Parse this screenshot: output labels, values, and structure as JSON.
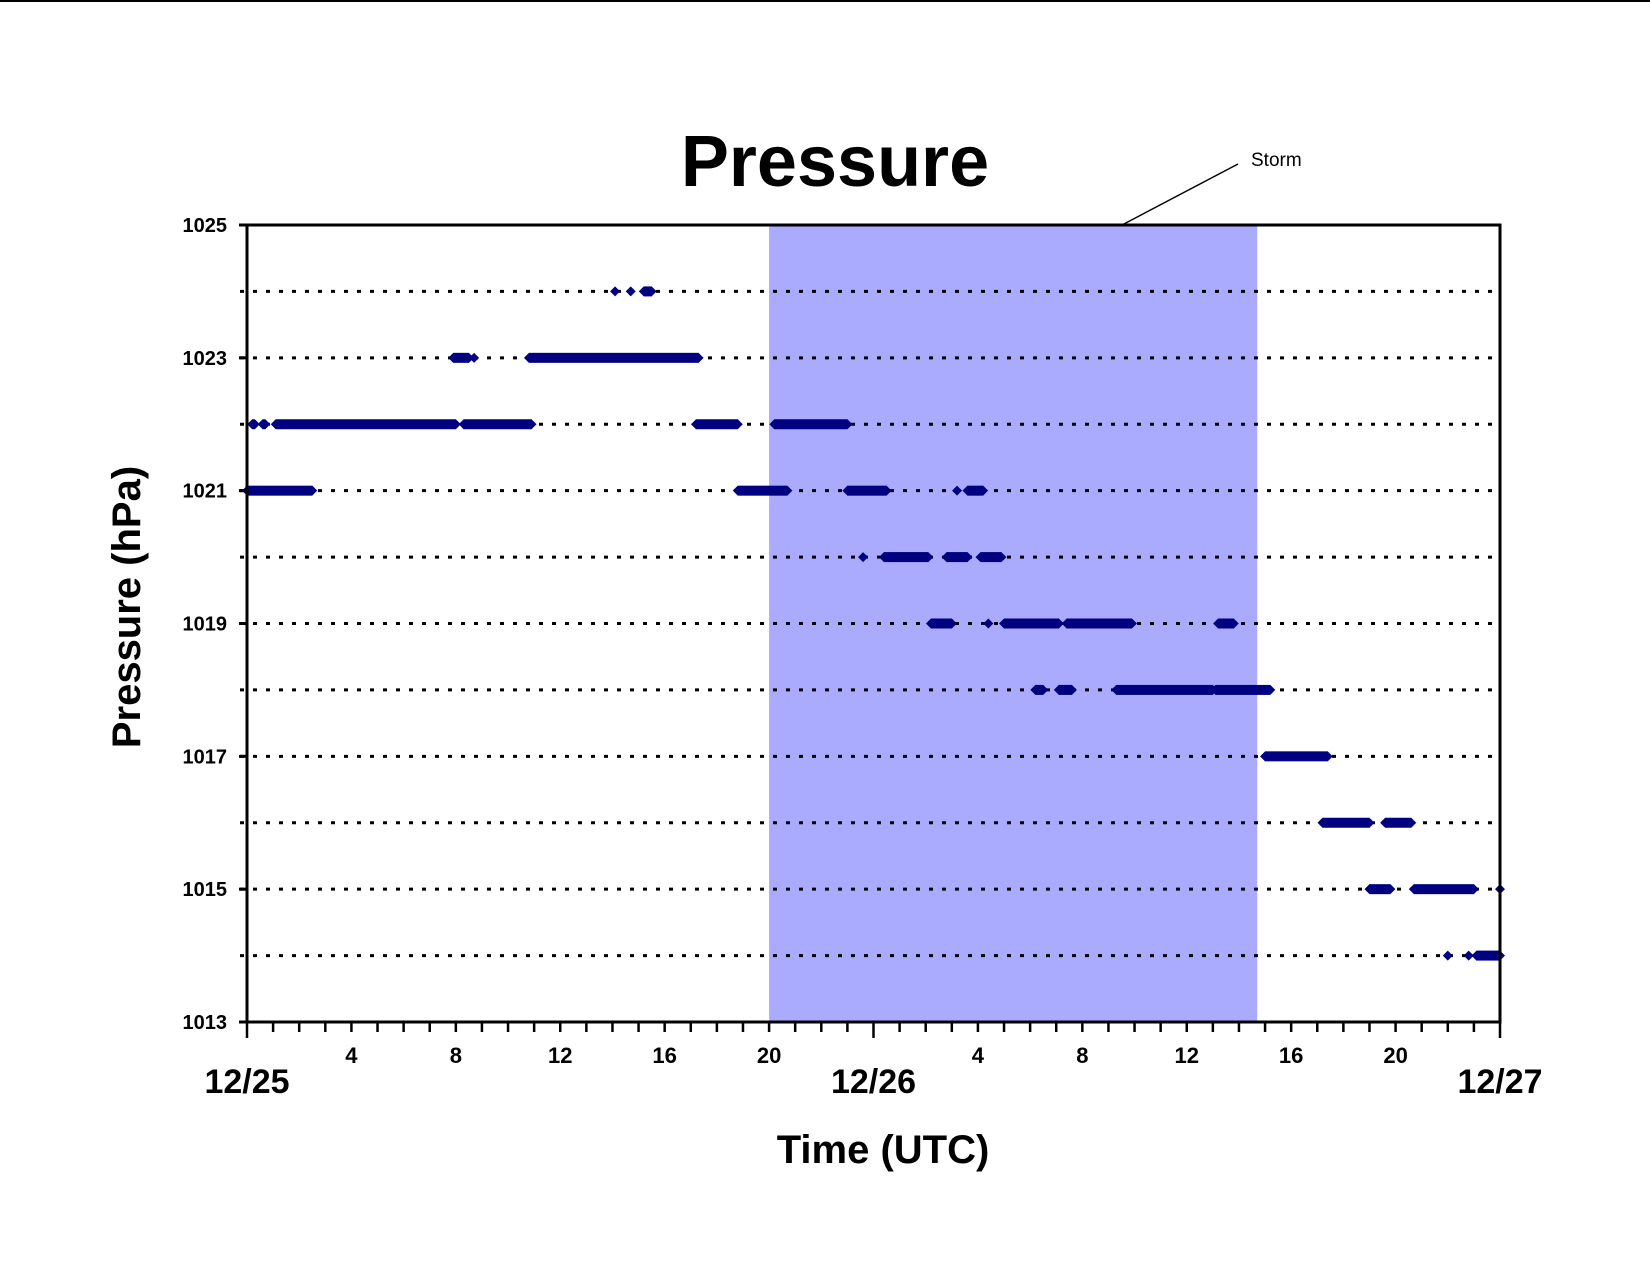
{
  "chart_data": {
    "type": "scatter",
    "title": "Pressure",
    "xlabel": "Time (UTC)",
    "ylabel": "Pressure (hPa)",
    "xlim": [
      0,
      48
    ],
    "ylim": [
      1013,
      1025
    ],
    "yticks_labeled": [
      1013,
      1015,
      1017,
      1019,
      1021,
      1023,
      1025
    ],
    "y_gridlines": [
      1014,
      1015,
      1016,
      1017,
      1018,
      1019,
      1020,
      1021,
      1022,
      1023,
      1024
    ],
    "grid": "horizontal dotted",
    "x_hour_ticks": [
      {
        "hour": 4,
        "label": "4"
      },
      {
        "hour": 8,
        "label": "8"
      },
      {
        "hour": 12,
        "label": "12"
      },
      {
        "hour": 16,
        "label": "16"
      },
      {
        "hour": 20,
        "label": "20"
      },
      {
        "hour": 28,
        "label": "4"
      },
      {
        "hour": 32,
        "label": "8"
      },
      {
        "hour": 36,
        "label": "12"
      },
      {
        "hour": 40,
        "label": "16"
      },
      {
        "hour": 44,
        "label": "20"
      }
    ],
    "x_date_labels": [
      {
        "hour": 0,
        "label": "12/25"
      },
      {
        "hour": 24,
        "label": "12/26"
      },
      {
        "hour": 48,
        "label": "12/27"
      }
    ],
    "storm": {
      "label": "Storm",
      "start": 20,
      "end": 38.7,
      "color": "#aaaaff"
    },
    "marker_color": "#000080",
    "series": [
      {
        "segments": [
          {
            "y": 1024,
            "x0": 14.1,
            "x1": 14.1
          },
          {
            "y": 1024,
            "x0": 14.7,
            "x1": 14.7
          },
          {
            "y": 1024,
            "x0": 15.2,
            "x1": 15.5
          },
          {
            "y": 1023,
            "x0": 7.9,
            "x1": 8.5
          },
          {
            "y": 1023,
            "x0": 8.7,
            "x1": 8.7
          },
          {
            "y": 1023,
            "x0": 10.8,
            "x1": 17.3
          },
          {
            "y": 1022,
            "x0": 0.2,
            "x1": 0.3
          },
          {
            "y": 1022,
            "x0": 0.6,
            "x1": 0.7
          },
          {
            "y": 1022,
            "x0": 1.1,
            "x1": 8.0
          },
          {
            "y": 1022,
            "x0": 8.3,
            "x1": 10.9
          },
          {
            "y": 1022,
            "x0": 17.2,
            "x1": 18.8
          },
          {
            "y": 1022,
            "x0": 20.2,
            "x1": 23.0
          },
          {
            "y": 1021,
            "x0": 0.0,
            "x1": 2.5
          },
          {
            "y": 1021,
            "x0": 18.8,
            "x1": 20.7
          },
          {
            "y": 1021,
            "x0": 23.0,
            "x1": 24.5
          },
          {
            "y": 1021,
            "x0": 27.2,
            "x1": 27.2
          },
          {
            "y": 1021,
            "x0": 27.6,
            "x1": 28.2
          },
          {
            "y": 1020,
            "x0": 23.6,
            "x1": 23.6
          },
          {
            "y": 1020,
            "x0": 24.4,
            "x1": 26.1
          },
          {
            "y": 1020,
            "x0": 26.8,
            "x1": 27.6
          },
          {
            "y": 1020,
            "x0": 28.1,
            "x1": 28.9
          },
          {
            "y": 1019,
            "x0": 26.2,
            "x1": 27.0
          },
          {
            "y": 1019,
            "x0": 28.4,
            "x1": 28.4
          },
          {
            "y": 1019,
            "x0": 29.0,
            "x1": 31.1
          },
          {
            "y": 1019,
            "x0": 31.4,
            "x1": 33.9
          },
          {
            "y": 1019,
            "x0": 37.2,
            "x1": 37.8
          },
          {
            "y": 1018,
            "x0": 30.2,
            "x1": 30.5
          },
          {
            "y": 1018,
            "x0": 31.1,
            "x1": 31.6
          },
          {
            "y": 1018,
            "x0": 33.3,
            "x1": 37.0
          },
          {
            "y": 1018,
            "x0": 37.1,
            "x1": 39.2
          },
          {
            "y": 1017,
            "x0": 39.0,
            "x1": 41.4
          },
          {
            "y": 1016,
            "x0": 41.2,
            "x1": 43.0
          },
          {
            "y": 1016,
            "x0": 43.6,
            "x1": 44.6
          },
          {
            "y": 1015,
            "x0": 43.0,
            "x1": 43.8
          },
          {
            "y": 1015,
            "x0": 44.7,
            "x1": 47.0
          },
          {
            "y": 1015,
            "x0": 48.0,
            "x1": 48.0
          },
          {
            "y": 1014,
            "x0": 46.0,
            "x1": 46.0
          },
          {
            "y": 1014,
            "x0": 46.8,
            "x1": 46.8
          },
          {
            "y": 1014,
            "x0": 47.1,
            "x1": 48.0
          }
        ]
      }
    ]
  }
}
